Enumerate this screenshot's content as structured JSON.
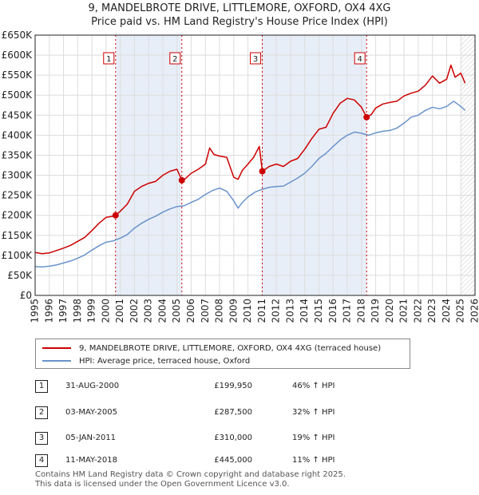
{
  "chart_data": {
    "type": "line",
    "title": "9, MANDELBROTE DRIVE, LITTLEMORE, OXFORD, OX4 4XG",
    "subtitle": "Price paid vs. HM Land Registry's House Price Index (HPI)",
    "ylim": [
      0,
      650000
    ],
    "xlim": [
      1995,
      2026
    ],
    "y_ticks": [
      0,
      50000,
      100000,
      150000,
      200000,
      250000,
      300000,
      350000,
      400000,
      450000,
      500000,
      550000,
      600000,
      650000
    ],
    "y_tick_labels": [
      "£0",
      "£50K",
      "£100K",
      "£150K",
      "£200K",
      "£250K",
      "£300K",
      "£350K",
      "£400K",
      "£450K",
      "£500K",
      "£550K",
      "£600K",
      "£650K"
    ],
    "x_ticks": [
      1995,
      1996,
      1997,
      1998,
      1999,
      2000,
      2001,
      2002,
      2003,
      2004,
      2005,
      2006,
      2007,
      2008,
      2009,
      2010,
      2011,
      2012,
      2013,
      2014,
      2015,
      2016,
      2017,
      2018,
      2019,
      2020,
      2021,
      2022,
      2023,
      2024,
      2025,
      2026
    ],
    "x_tick_labels": [
      "1995",
      "1996",
      "1997",
      "1998",
      "1999",
      "2000",
      "2001",
      "2002",
      "2003",
      "2004",
      "2005",
      "2006",
      "2007",
      "2008",
      "2009",
      "2010",
      "2011",
      "2012",
      "2013",
      "2014",
      "2015",
      "2016",
      "2017",
      "2018",
      "2019",
      "2020",
      "2021",
      "2022",
      "2023",
      "2024",
      "2025",
      "2026"
    ],
    "series": [
      {
        "name": "9, MANDELBROTE DRIVE, LITTLEMORE, OXFORD, OX4 4XG (terraced house)",
        "color": "#cc0000",
        "x": [
          1995.0,
          1995.5,
          1996.0,
          1996.5,
          1997.0,
          1997.5,
          1998.0,
          1998.5,
          1999.0,
          1999.5,
          2000.0,
          2000.5,
          2000.67,
          2001.0,
          2001.5,
          2002.0,
          2002.5,
          2003.0,
          2003.5,
          2004.0,
          2004.5,
          2005.0,
          2005.34,
          2005.6,
          2006.0,
          2006.5,
          2007.0,
          2007.3,
          2007.6,
          2008.0,
          2008.5,
          2009.0,
          2009.3,
          2009.6,
          2010.0,
          2010.4,
          2010.8,
          2011.01,
          2011.5,
          2012.0,
          2012.5,
          2013.0,
          2013.5,
          2014.0,
          2014.5,
          2015.0,
          2015.5,
          2016.0,
          2016.5,
          2017.0,
          2017.5,
          2018.0,
          2018.36,
          2018.7,
          2019.0,
          2019.5,
          2020.0,
          2020.5,
          2021.0,
          2021.5,
          2022.0,
          2022.5,
          2023.0,
          2023.5,
          2024.0,
          2024.3,
          2024.6,
          2025.0,
          2025.3
        ],
        "values": [
          107000,
          104000,
          106000,
          112000,
          118000,
          125000,
          135000,
          145000,
          162000,
          180000,
          195000,
          198000,
          199950,
          210000,
          228000,
          260000,
          272000,
          280000,
          285000,
          300000,
          310000,
          315000,
          287500,
          292000,
          305000,
          315000,
          328000,
          368000,
          352000,
          348000,
          345000,
          295000,
          290000,
          312000,
          328000,
          345000,
          372000,
          310000,
          322000,
          328000,
          322000,
          335000,
          342000,
          365000,
          392000,
          415000,
          420000,
          455000,
          480000,
          492000,
          488000,
          470000,
          445000,
          452000,
          468000,
          478000,
          482000,
          485000,
          498000,
          505000,
          510000,
          525000,
          548000,
          530000,
          540000,
          575000,
          545000,
          555000,
          530000
        ]
      },
      {
        "name": "HPI: Average price, terraced house, Oxford",
        "color": "#6a93cb",
        "x": [
          1995.0,
          1995.5,
          1996.0,
          1996.5,
          1997.0,
          1997.5,
          1998.0,
          1998.5,
          1999.0,
          1999.5,
          2000.0,
          2000.5,
          2001.0,
          2001.5,
          2002.0,
          2002.5,
          2003.0,
          2003.5,
          2004.0,
          2004.5,
          2005.0,
          2005.5,
          2006.0,
          2006.5,
          2007.0,
          2007.5,
          2008.0,
          2008.5,
          2009.0,
          2009.3,
          2009.6,
          2010.0,
          2010.5,
          2011.0,
          2011.5,
          2012.0,
          2012.5,
          2013.0,
          2013.5,
          2014.0,
          2014.5,
          2015.0,
          2015.5,
          2016.0,
          2016.5,
          2017.0,
          2017.5,
          2018.0,
          2018.5,
          2019.0,
          2019.5,
          2020.0,
          2020.5,
          2021.0,
          2021.5,
          2022.0,
          2022.5,
          2023.0,
          2023.5,
          2024.0,
          2024.5,
          2025.0,
          2025.3
        ],
        "values": [
          72000,
          71000,
          73000,
          76000,
          81000,
          86000,
          93000,
          101000,
          113000,
          124000,
          133000,
          136000,
          143000,
          152000,
          168000,
          180000,
          190000,
          198000,
          208000,
          216000,
          222000,
          224000,
          232000,
          240000,
          252000,
          262000,
          268000,
          260000,
          236000,
          218000,
          232000,
          246000,
          258000,
          265000,
          270000,
          272000,
          273000,
          283000,
          293000,
          305000,
          322000,
          342000,
          355000,
          372000,
          388000,
          400000,
          408000,
          405000,
          400000,
          406000,
          410000,
          412000,
          418000,
          430000,
          445000,
          450000,
          462000,
          470000,
          466000,
          472000,
          485000,
          472000,
          462000
        ]
      }
    ],
    "sales": [
      {
        "label": "1",
        "x": 2000.67,
        "value": 199950
      },
      {
        "label": "2",
        "x": 2005.34,
        "value": 287500
      },
      {
        "label": "3",
        "x": 2011.01,
        "value": 310000
      },
      {
        "label": "4",
        "x": 2018.36,
        "value": 445000
      }
    ],
    "hatched_region_from": 2025.0
  },
  "legend": {
    "red_label": "9, MANDELBROTE DRIVE, LITTLEMORE, OXFORD, OX4 4XG (terraced house)",
    "blue_label": "HPI: Average price, terraced house, Oxford"
  },
  "transactions": [
    {
      "num": "1",
      "date": "31-AUG-2000",
      "price": "£199,950",
      "hpi": "46% ↑ HPI"
    },
    {
      "num": "2",
      "date": "03-MAY-2005",
      "price": "£287,500",
      "hpi": "32% ↑ HPI"
    },
    {
      "num": "3",
      "date": "05-JAN-2011",
      "price": "£310,000",
      "hpi": "19% ↑ HPI"
    },
    {
      "num": "4",
      "date": "11-MAY-2018",
      "price": "£445,000",
      "hpi": "11% ↑ HPI"
    }
  ],
  "footer": {
    "line1": "Contains HM Land Registry data © Crown copyright and database right 2025.",
    "line2": "This data is licensed under the Open Government Licence v3.0."
  }
}
